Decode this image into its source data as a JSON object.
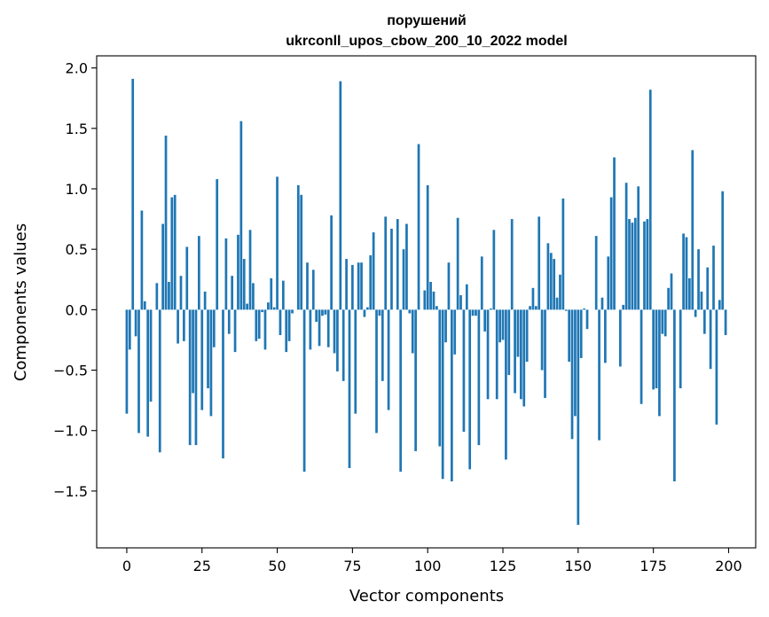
{
  "chart_data": {
    "type": "bar",
    "title_lines": [
      "порушений",
      "ukrconll_upos_cbow_200_10_2022 model"
    ],
    "xlabel": "Vector components",
    "ylabel": "Components values",
    "xlim": [
      -10,
      209
    ],
    "ylim": [
      -1.97,
      2.1
    ],
    "xticks": [
      0,
      25,
      50,
      75,
      100,
      125,
      150,
      175,
      200
    ],
    "xtick_labels": [
      "0",
      "25",
      "50",
      "75",
      "100",
      "125",
      "150",
      "175",
      "200"
    ],
    "yticks": [
      -1.5,
      -1.0,
      -0.5,
      0.0,
      0.5,
      1.0,
      1.5,
      2.0
    ],
    "ytick_labels": [
      "−1.5",
      "−1.0",
      "−0.5",
      "0.0",
      "0.5",
      "1.0",
      "1.5",
      "2.0"
    ],
    "bar_color": "#1f77b4",
    "values": [
      -0.86,
      -0.33,
      1.91,
      -0.22,
      -1.02,
      0.82,
      0.07,
      -1.05,
      -0.76,
      0.0,
      0.22,
      -1.18,
      0.71,
      1.44,
      0.23,
      0.93,
      0.95,
      -0.28,
      0.28,
      -0.26,
      0.52,
      -1.12,
      -0.69,
      -1.12,
      0.61,
      -0.83,
      0.15,
      -0.65,
      -0.88,
      -0.31,
      1.08,
      0.0,
      -1.23,
      0.59,
      -0.2,
      0.28,
      -0.35,
      0.62,
      1.56,
      0.42,
      0.05,
      0.66,
      0.22,
      -0.26,
      -0.24,
      -0.02,
      -0.33,
      0.06,
      0.26,
      0.02,
      1.1,
      -0.21,
      0.24,
      -0.35,
      -0.26,
      -0.03,
      0.0,
      1.03,
      0.95,
      -1.34,
      0.39,
      -0.33,
      0.33,
      -0.1,
      -0.3,
      -0.05,
      -0.04,
      -0.31,
      0.78,
      -0.36,
      -0.51,
      1.89,
      -0.59,
      0.42,
      -1.31,
      0.37,
      -0.86,
      0.39,
      0.39,
      -0.06,
      0.02,
      0.45,
      0.64,
      -1.02,
      -0.05,
      -0.59,
      0.77,
      -0.83,
      0.67,
      0.0,
      0.75,
      -1.34,
      0.5,
      0.71,
      -0.03,
      -0.36,
      -1.17,
      1.37,
      0.0,
      0.16,
      1.03,
      0.23,
      0.15,
      0.03,
      -1.13,
      -1.4,
      -0.27,
      0.39,
      -1.42,
      -0.37,
      0.76,
      0.12,
      -1.01,
      0.21,
      -1.32,
      -0.05,
      -0.05,
      -1.12,
      0.44,
      -0.18,
      -0.74,
      0.01,
      0.66,
      -0.74,
      -0.27,
      -0.25,
      -1.24,
      -0.54,
      0.75,
      -0.69,
      -0.39,
      -0.74,
      -0.8,
      -0.43,
      0.03,
      0.18,
      0.03,
      0.77,
      -0.5,
      -0.73,
      0.55,
      0.47,
      0.42,
      0.1,
      0.29,
      0.92,
      -0.01,
      -0.43,
      -1.07,
      -0.88,
      -1.78,
      -0.4,
      0.01,
      -0.16,
      0.0,
      0.0,
      0.61,
      -1.08,
      0.1,
      -0.44,
      0.44,
      0.93,
      1.26,
      0.0,
      -0.47,
      0.04,
      1.05,
      0.75,
      0.72,
      0.76,
      1.02,
      -0.78,
      0.73,
      0.75,
      1.82,
      -0.66,
      -0.65,
      -0.88,
      -0.2,
      -0.22,
      0.18,
      0.3,
      -1.42,
      0.0,
      -0.65,
      0.63,
      0.6,
      0.26,
      1.32,
      -0.06,
      0.5,
      0.15,
      -0.2,
      0.35,
      -0.49,
      0.53,
      -0.95,
      0.08,
      0.98,
      -0.21
    ]
  }
}
